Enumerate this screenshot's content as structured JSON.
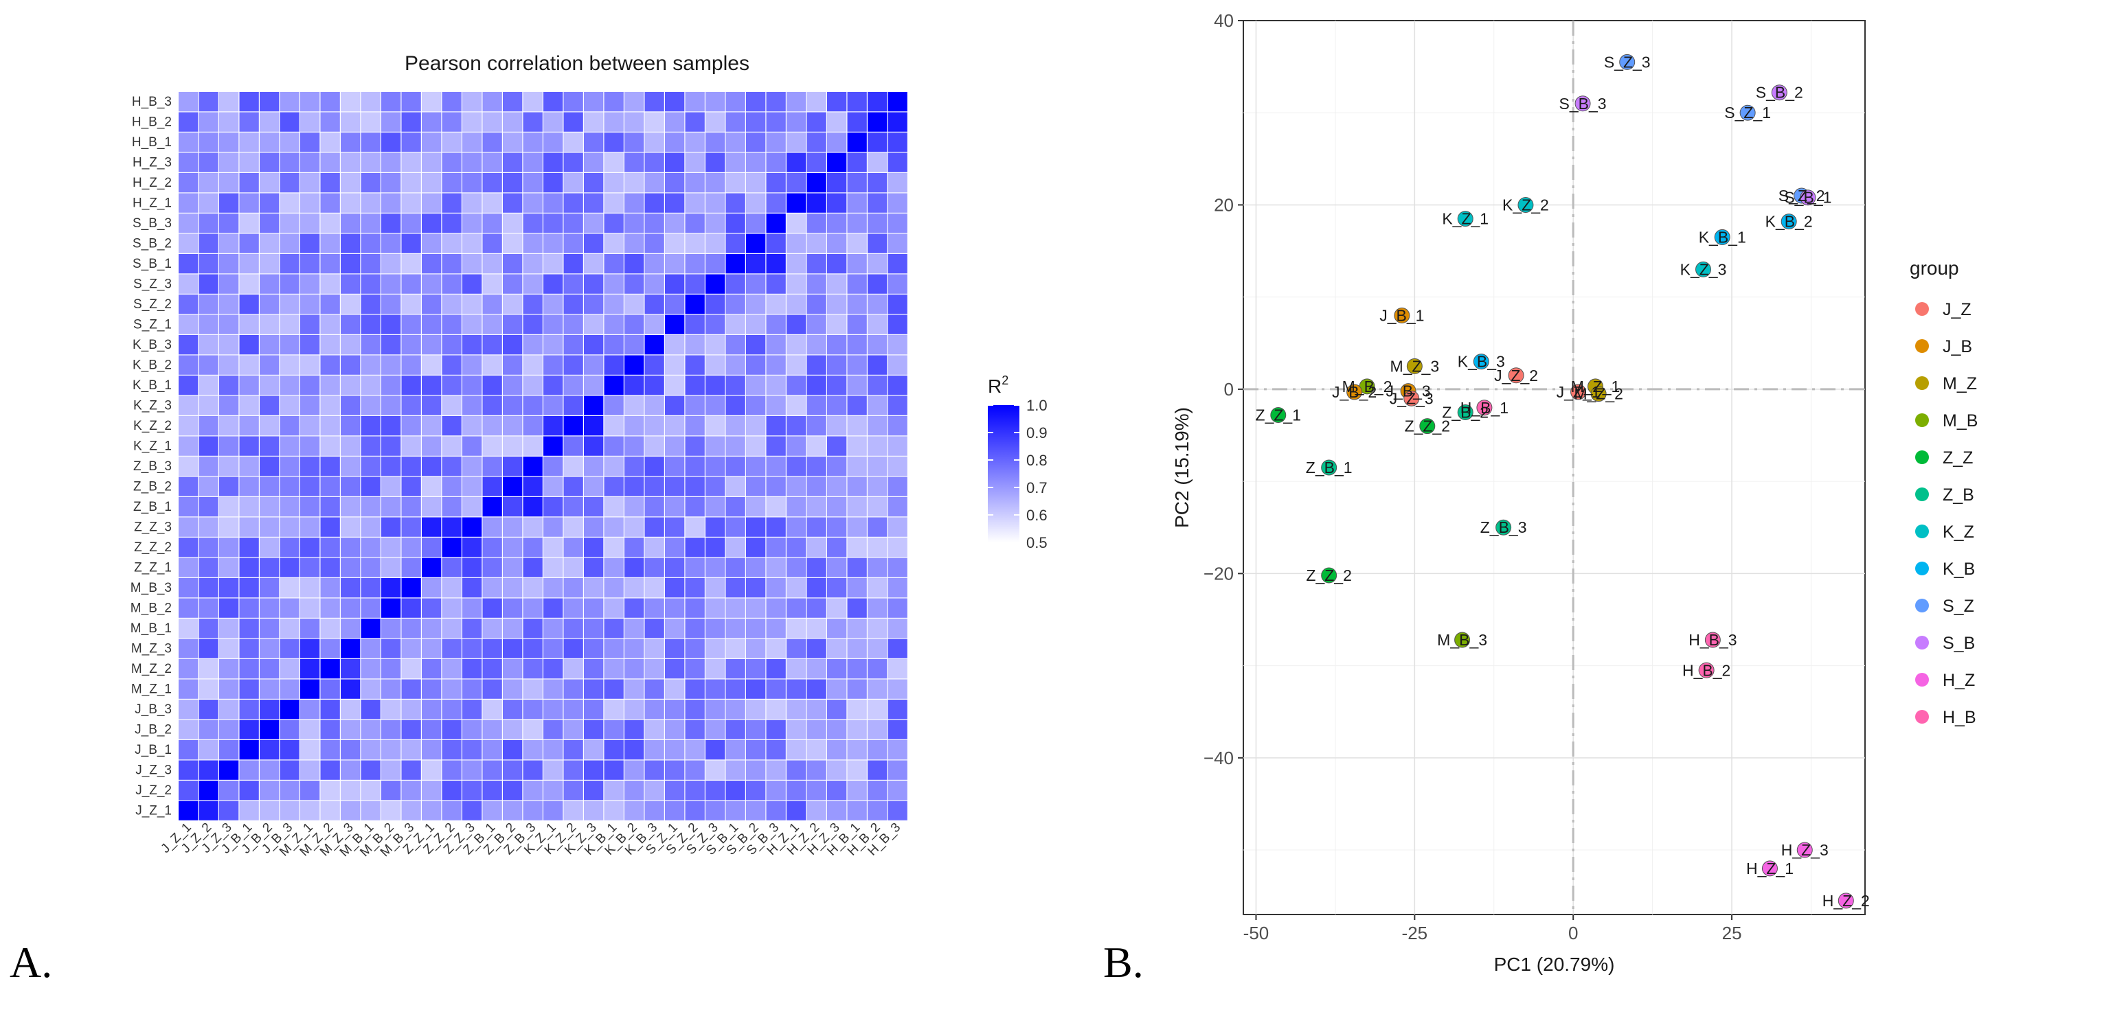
{
  "panel_labels": {
    "a": "A.",
    "b": "B."
  },
  "chart_data": [
    {
      "type": "heatmap",
      "title": "Pearson correlation between samples",
      "samples": [
        "J_Z_1",
        "J_Z_2",
        "J_Z_3",
        "J_B_1",
        "J_B_2",
        "J_B_3",
        "M_Z_1",
        "M_Z_2",
        "M_Z_3",
        "M_B_1",
        "M_B_2",
        "M_B_3",
        "Z_Z_1",
        "Z_Z_2",
        "Z_Z_3",
        "Z_B_1",
        "Z_B_2",
        "Z_B_3",
        "K_Z_1",
        "K_Z_2",
        "K_Z_3",
        "K_B_1",
        "K_B_2",
        "K_B_3",
        "S_Z_1",
        "S_Z_2",
        "S_Z_3",
        "S_B_1",
        "S_B_2",
        "S_B_3",
        "H_Z_1",
        "H_Z_2",
        "H_Z_3",
        "H_B_1",
        "H_B_2",
        "H_B_3"
      ],
      "legend": {
        "title": "R",
        "superscript": "2",
        "min": 0.5,
        "max": 1.0,
        "ticks": [
          "1.0",
          "0.9",
          "0.8",
          "0.7",
          "0.6",
          "0.5"
        ],
        "low_color": "#ffffff",
        "high_color": "#0000ff"
      },
      "diagonal_value": 1.0,
      "value_range": [
        0.5,
        1.0
      ]
    },
    {
      "type": "scatter",
      "xlabel": "PC1 (20.79%)",
      "ylabel": "PC2 (15.19%)",
      "xlim": [
        -52,
        46
      ],
      "ylim": [
        -57,
        40
      ],
      "xticks": [
        "-50",
        "-25",
        "0",
        "25"
      ],
      "xtick_values": [
        -50,
        -25,
        0,
        25
      ],
      "yticks": [
        "40",
        "20",
        "0",
        "−20",
        "−40"
      ],
      "ytick_values": [
        40,
        20,
        0,
        -20,
        -40
      ],
      "legend_title": "group",
      "groups": [
        {
          "name": "J_Z",
          "color": "#f8766d"
        },
        {
          "name": "J_B",
          "color": "#de8c00"
        },
        {
          "name": "M_Z",
          "color": "#b79f00"
        },
        {
          "name": "M_B",
          "color": "#7cae00"
        },
        {
          "name": "Z_Z",
          "color": "#00ba38"
        },
        {
          "name": "Z_B",
          "color": "#00c08b"
        },
        {
          "name": "K_Z",
          "color": "#00bfc4"
        },
        {
          "name": "K_B",
          "color": "#00b4f0"
        },
        {
          "name": "S_Z",
          "color": "#619cff"
        },
        {
          "name": "S_B",
          "color": "#c77cff"
        },
        {
          "name": "H_Z",
          "color": "#f564e3"
        },
        {
          "name": "H_B",
          "color": "#ff64b0"
        }
      ],
      "points": [
        {
          "label": "S_Z_3",
          "group": "S_Z",
          "x": 8.5,
          "y": 35.5
        },
        {
          "label": "S_B_2",
          "group": "S_B",
          "x": 32.5,
          "y": 32.2
        },
        {
          "label": "S_B_3",
          "group": "S_B",
          "x": 1.5,
          "y": 31.0
        },
        {
          "label": "S_Z_1",
          "group": "S_Z",
          "x": 27.5,
          "y": 30.0
        },
        {
          "label": "S_Z_2",
          "group": "S_Z",
          "x": 36.0,
          "y": 21.0
        },
        {
          "label": "S_B_1",
          "group": "S_B",
          "x": 37.0,
          "y": 20.8
        },
        {
          "label": "K_B_2",
          "group": "K_B",
          "x": 34.0,
          "y": 18.2
        },
        {
          "label": "K_Z_1",
          "group": "K_Z",
          "x": -17.0,
          "y": 18.5
        },
        {
          "label": "K_Z_2",
          "group": "K_Z",
          "x": -7.5,
          "y": 20.0
        },
        {
          "label": "K_B_1",
          "group": "K_B",
          "x": 23.5,
          "y": 16.5
        },
        {
          "label": "K_Z_3",
          "group": "K_Z",
          "x": 20.5,
          "y": 13.0
        },
        {
          "label": "J_B_1",
          "group": "J_B",
          "x": -27.0,
          "y": 8.0
        },
        {
          "label": "K_B_3",
          "group": "K_B",
          "x": -14.5,
          "y": 3.0
        },
        {
          "label": "M_Z_3",
          "group": "M_Z",
          "x": -25.0,
          "y": 2.5
        },
        {
          "label": "J_Z_2",
          "group": "J_Z",
          "x": -9.0,
          "y": 1.5
        },
        {
          "label": "M_B_2",
          "group": "M_B",
          "x": -32.5,
          "y": 0.3
        },
        {
          "label": "J_B_2",
          "group": "J_B",
          "x": -34.5,
          "y": -0.3
        },
        {
          "label": "J_B_3",
          "group": "J_B",
          "x": -26.0,
          "y": -0.2
        },
        {
          "label": "J_Z_3",
          "group": "J_Z",
          "x": -25.5,
          "y": -1.0
        },
        {
          "label": "J_Z_1",
          "group": "J_Z",
          "x": 0.8,
          "y": -0.3
        },
        {
          "label": "M_Z_1",
          "group": "M_Z",
          "x": 3.5,
          "y": 0.3
        },
        {
          "label": "M_Z_2",
          "group": "M_Z",
          "x": 4.0,
          "y": -0.5
        },
        {
          "label": "H_B_1",
          "group": "H_B",
          "x": -14.0,
          "y": -2.0
        },
        {
          "label": "Z_B_2",
          "group": "Z_B",
          "x": -17.0,
          "y": -2.5
        },
        {
          "label": "Z_Z_1",
          "group": "Z_Z",
          "x": -46.5,
          "y": -2.8
        },
        {
          "label": "Z_Z_2",
          "group": "Z_Z",
          "x": -23.0,
          "y": -4.0
        },
        {
          "label": "Z_B_1",
          "group": "Z_B",
          "x": -38.5,
          "y": -8.5
        },
        {
          "label": "Z_B_3",
          "group": "Z_B",
          "x": -11.0,
          "y": -15.0
        },
        {
          "label": "Z_Z_2",
          "group": "Z_Z",
          "x": -38.5,
          "y": -20.2
        },
        {
          "label": "M_B_3",
          "group": "M_B",
          "x": -17.5,
          "y": -27.2
        },
        {
          "label": "H_B_3",
          "group": "H_B",
          "x": 22.0,
          "y": -27.2
        },
        {
          "label": "H_B_2",
          "group": "H_B",
          "x": 21.0,
          "y": -30.5
        },
        {
          "label": "H_Z_3",
          "group": "H_Z",
          "x": 36.5,
          "y": -50.0
        },
        {
          "label": "H_Z_1",
          "group": "H_Z",
          "x": 31.0,
          "y": -52.0
        },
        {
          "label": "H_Z_2",
          "group": "H_Z",
          "x": 43.0,
          "y": -55.5
        }
      ]
    }
  ]
}
